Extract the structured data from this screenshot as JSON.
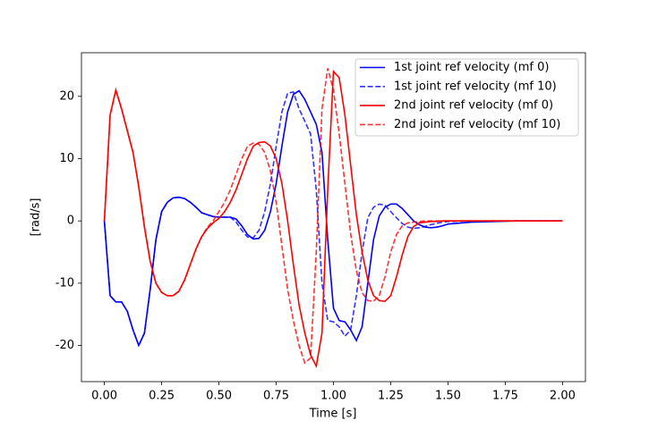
{
  "chart_data": {
    "type": "line",
    "xlabel": "Time [s]",
    "ylabel": "[rad/s]",
    "x": [
      0,
      0.025,
      0.05,
      0.075,
      0.1,
      0.125,
      0.15,
      0.175,
      0.2,
      0.225,
      0.25,
      0.275,
      0.3,
      0.325,
      0.35,
      0.375,
      0.4,
      0.425,
      0.45,
      0.475,
      0.5,
      0.525,
      0.55,
      0.575,
      0.6,
      0.625,
      0.65,
      0.675,
      0.7,
      0.725,
      0.75,
      0.775,
      0.8,
      0.825,
      0.85,
      0.875,
      0.9,
      0.925,
      0.95,
      0.975,
      1.0,
      1.025,
      1.05,
      1.075,
      1.1,
      1.125,
      1.15,
      1.175,
      1.2,
      1.225,
      1.25,
      1.275,
      1.3,
      1.325,
      1.35,
      1.375,
      1.4,
      1.425,
      1.45,
      1.475,
      1.5,
      1.6,
      1.7,
      1.8,
      1.9,
      2.0
    ],
    "series": [
      {
        "name": "1st joint ref velocity (mf 0)",
        "color": "#0000ff",
        "linestyle": "solid",
        "alpha": 1,
        "values": [
          0,
          -12,
          -13,
          -13,
          -14.5,
          -17.5,
          -20,
          -18,
          -11,
          -3,
          1.5,
          3,
          3.7,
          3.8,
          3.6,
          3,
          2.2,
          1.3,
          1,
          0.7,
          0.6,
          0.6,
          0.6,
          0.3,
          -0.8,
          -2.2,
          -2.9,
          -2.8,
          -1.5,
          1.5,
          6,
          12,
          17.5,
          20.3,
          20.9,
          19.5,
          17.5,
          15.5,
          11,
          -3,
          -14,
          -16,
          -16.2,
          -17.5,
          -19.2,
          -17,
          -10,
          -3,
          0.8,
          2.2,
          2.7,
          2.7,
          2,
          1,
          0,
          -0.6,
          -1,
          -1.1,
          -1,
          -0.8,
          -0.5,
          -0.2,
          -0.1,
          0,
          0,
          0
        ]
      },
      {
        "name": "1st joint ref velocity (mf 10)",
        "color": "#0000ff",
        "linestyle": "dashed",
        "alpha": 0.8,
        "values": [
          0,
          -12,
          -13,
          -13,
          -14.5,
          -17.5,
          -20,
          -18,
          -11,
          -3,
          1.5,
          3,
          3.7,
          3.8,
          3.6,
          3,
          2.2,
          1.3,
          1,
          0.7,
          0.6,
          0.6,
          0.6,
          -0.2,
          -1.5,
          -2.6,
          -2.7,
          -1.5,
          1.5,
          6,
          12,
          17.5,
          20.5,
          20.7,
          18,
          16,
          14,
          5,
          -10,
          -16,
          -16.2,
          -17,
          -18.5,
          -17.5,
          -12,
          -5,
          0.5,
          2.2,
          2.7,
          2.5,
          1.5,
          0.5,
          -0.4,
          -1,
          -1.2,
          -1.1,
          -0.9,
          -0.6,
          -0.4,
          -0.2,
          -0.1,
          0,
          0,
          0,
          0,
          0
        ]
      },
      {
        "name": "2nd joint ref velocity (mf 0)",
        "color": "#ff0000",
        "linestyle": "solid",
        "alpha": 1,
        "values": [
          0,
          17,
          21,
          18,
          14.5,
          11,
          5.5,
          -1,
          -6.5,
          -10,
          -11.5,
          -12,
          -12,
          -11.3,
          -9.5,
          -7,
          -4.5,
          -2.5,
          -1.2,
          -0.3,
          0.4,
          1.5,
          3,
          5,
          7.5,
          10,
          12,
          12.6,
          12.7,
          12,
          10,
          6,
          0,
          -7,
          -13.5,
          -18,
          -21.5,
          -23.3,
          -18,
          5,
          24,
          23,
          17,
          9,
          1,
          -5,
          -9.5,
          -12,
          -12.8,
          -12.9,
          -12,
          -9,
          -5.5,
          -2.5,
          -0.9,
          -0.3,
          -0.2,
          -0.1,
          -0.1,
          0,
          0,
          0,
          0,
          0,
          0,
          0
        ]
      },
      {
        "name": "2nd joint ref velocity (mf 10)",
        "color": "#ff0000",
        "linestyle": "dashed",
        "alpha": 0.8,
        "values": [
          0,
          17,
          21,
          18,
          14.5,
          11,
          5.5,
          -1,
          -6.5,
          -10,
          -11.5,
          -12,
          -12,
          -11.3,
          -9.5,
          -7,
          -4.5,
          -2.5,
          -1,
          0,
          1.5,
          3,
          5,
          7.5,
          10,
          12,
          12.5,
          12.3,
          11,
          8,
          3,
          -4,
          -11,
          -16,
          -20,
          -22.8,
          -22,
          -5,
          18,
          24.5,
          21,
          14,
          6,
          -2,
          -8,
          -11.5,
          -12.8,
          -12.9,
          -12,
          -9,
          -5,
          -2.2,
          -0.8,
          -0.3,
          -0.2,
          -0.1,
          0,
          0,
          0,
          0,
          0,
          0,
          0,
          0,
          0,
          0
        ]
      }
    ],
    "xlim": [
      -0.1,
      2.1
    ],
    "ylim": [
      -25.8,
      27.0
    ],
    "xticks": [
      {
        "value": 0,
        "label": "0.00"
      },
      {
        "value": 0.25,
        "label": "0.25"
      },
      {
        "value": 0.5,
        "label": "0.50"
      },
      {
        "value": 0.75,
        "label": "0.75"
      },
      {
        "value": 1.0,
        "label": "1.00"
      },
      {
        "value": 1.25,
        "label": "1.25"
      },
      {
        "value": 1.5,
        "label": "1.50"
      },
      {
        "value": 1.75,
        "label": "1.75"
      },
      {
        "value": 2.0,
        "label": "2.00"
      }
    ],
    "yticks": [
      -20,
      -10,
      0,
      10,
      20
    ],
    "grid": false,
    "legend": "upper right"
  }
}
